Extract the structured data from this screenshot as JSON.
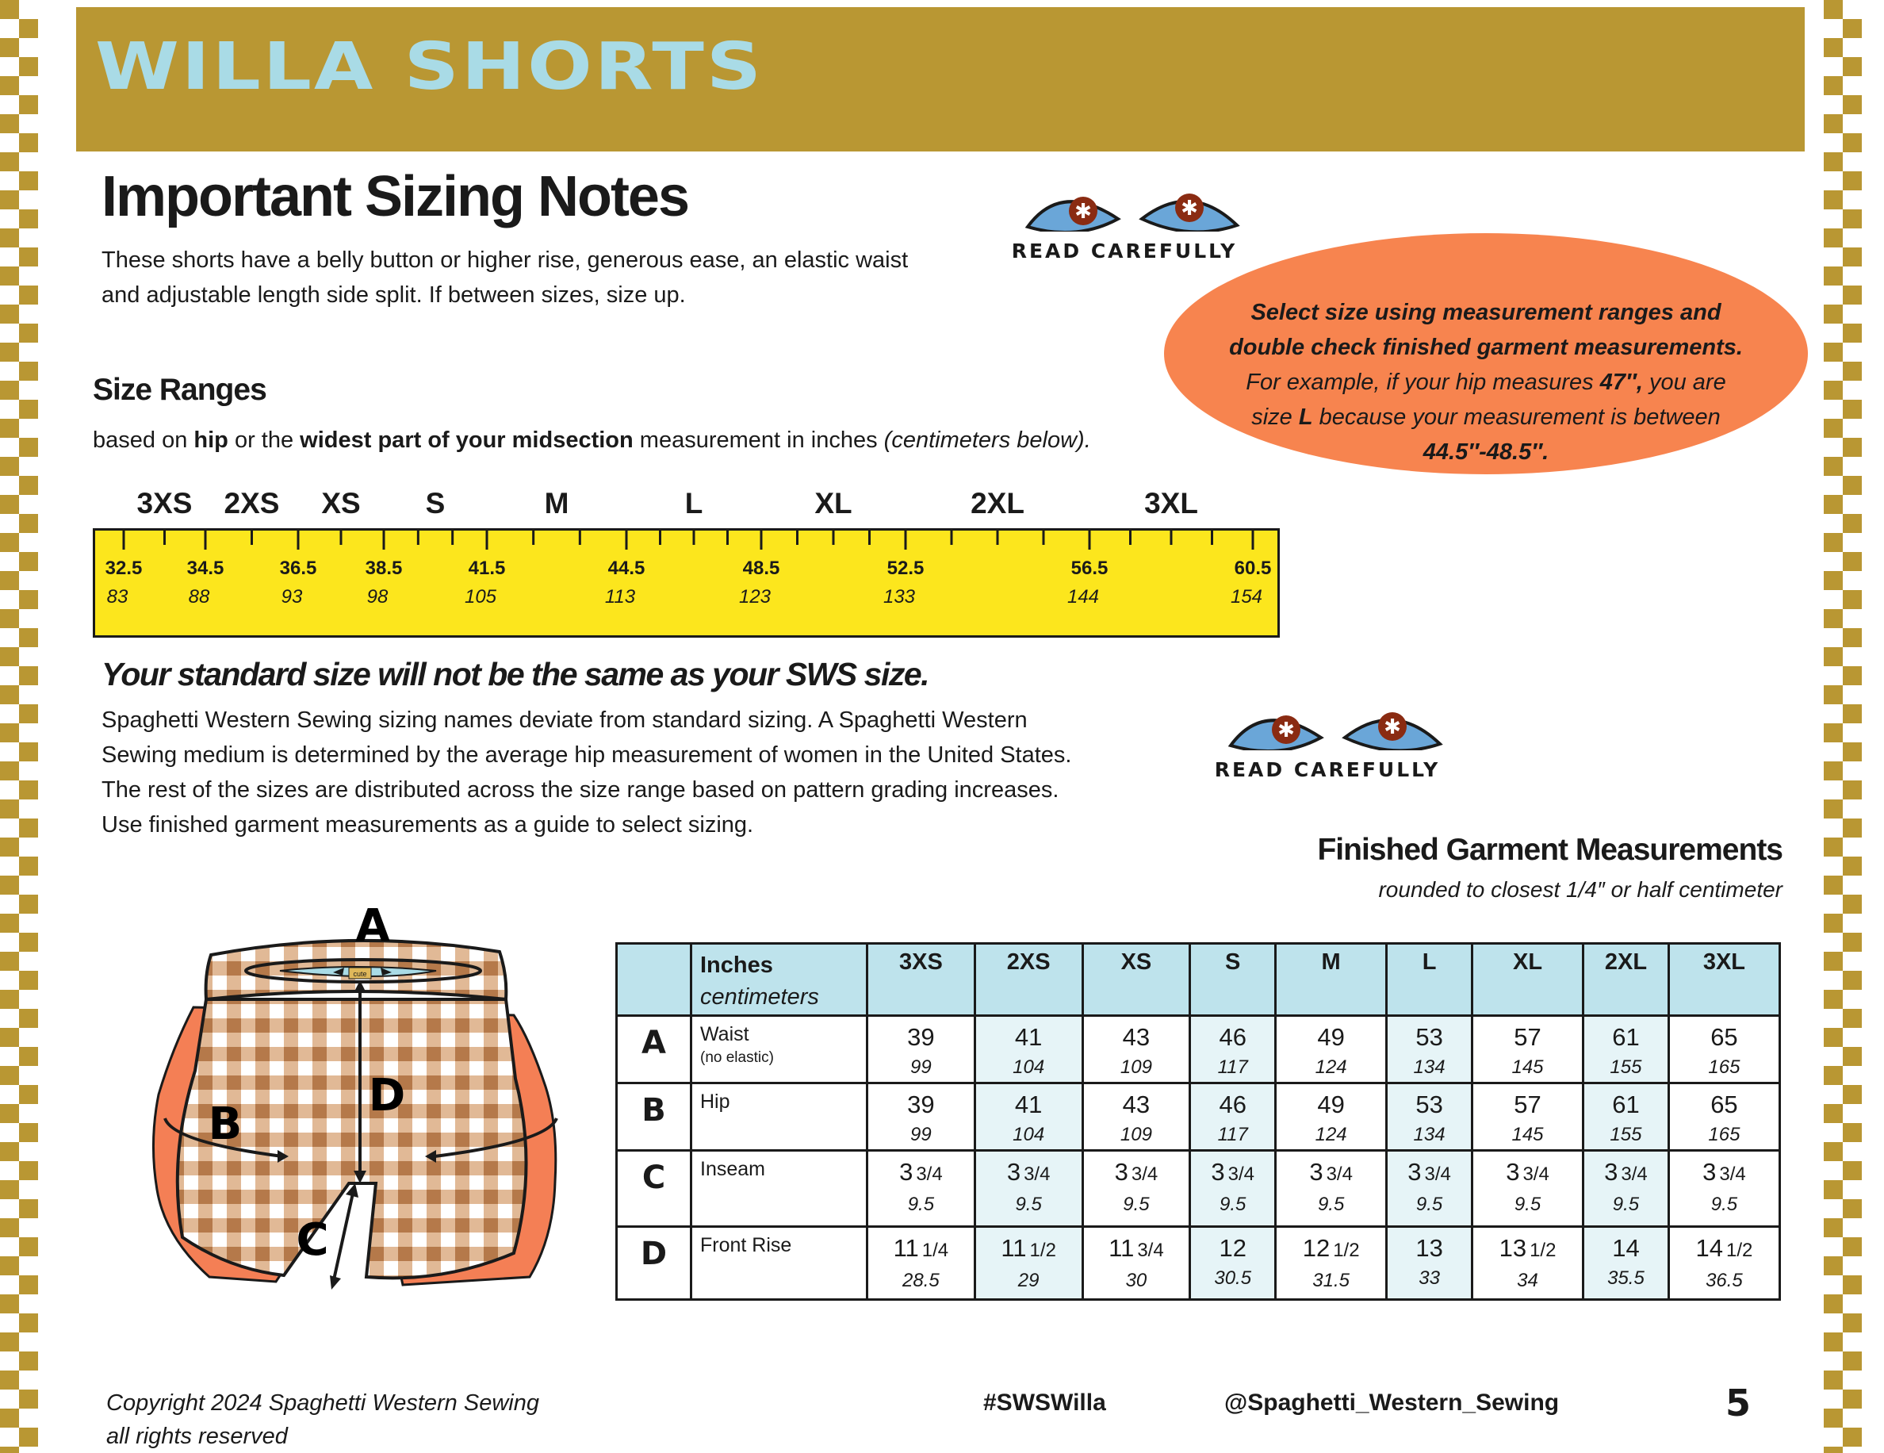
{
  "banner": {
    "title": "WILLA SHORTS",
    "color": "#b99733",
    "title_color": "#a9dbe6"
  },
  "heading": "Important Sizing Notes",
  "intro": {
    "line1": "These shorts have a belly button or higher rise, generous ease, an elastic waist",
    "line2": "and adjustable length side split.   If between sizes, size up."
  },
  "read_carefully": "READ CAREFULLY",
  "callout": {
    "line1": "Select size using measurement ranges and",
    "line2": "double check finished garment measurements.",
    "line3_pre": "For example, if your  hip measures ",
    "line3_bold": "47″,",
    "line3_post": "  you are",
    "line4_pre": "size ",
    "line4_bold": "L",
    "line4_post": " because your measurement is between",
    "line5": "44.5″-48.5″.",
    "color": "#f7844f"
  },
  "size_ranges": {
    "title": "Size Ranges",
    "based_pre": "based on ",
    "based_b1": "hip",
    "based_mid": " or the ",
    "based_b2": "widest part of your midsection",
    "based_post": " measurement in inches ",
    "based_italic": "(centimeters below).",
    "sizes": [
      "3XS",
      "2XS",
      "XS",
      "S",
      "M",
      "L",
      "XL",
      "2XL",
      "3XL"
    ],
    "inches": [
      "32.5",
      "34.5",
      "36.5",
      "38.5",
      "41.5",
      "44.5",
      "48.5",
      "52.5",
      "56.5",
      "60.5"
    ],
    "centimeters": [
      "83",
      "88",
      "93",
      "98",
      "105",
      "113",
      "123",
      "133",
      "144",
      "154"
    ],
    "ruler_color": "#fce61d"
  },
  "warning": "Your standard size will not be the same as your SWS size.",
  "explanation": {
    "line1": "Spaghetti Western Sewing sizing names deviate from standard sizing.  A Spaghetti Western",
    "line2": "Sewing  medium is determined by the average hip measurement of women in the United States.",
    "line3": "The rest of the sizes are distributed across the size range based on pattern grading increases.",
    "line4": "Use finished garment measurements as a guide to select sizing."
  },
  "finished": {
    "title": "Finished Garment Measurements",
    "subtitle": "rounded to closest 1/4″ or half centimeter",
    "unit_in": "Inches",
    "unit_cm": "centimeters",
    "sizes": [
      "3XS",
      "2XS",
      "XS",
      "S",
      "M",
      "L",
      "XL",
      "2XL",
      "3XL"
    ],
    "header_color": "#bee3ec",
    "rows": [
      {
        "letter": "A",
        "label": "Waist",
        "note": "(no elastic)",
        "in": [
          [
            "39",
            ""
          ],
          [
            "41",
            ""
          ],
          [
            "43",
            ""
          ],
          [
            "46",
            ""
          ],
          [
            "49",
            ""
          ],
          [
            "53",
            ""
          ],
          [
            "57",
            ""
          ],
          [
            "61",
            ""
          ],
          [
            "65",
            ""
          ]
        ],
        "cm": [
          "99",
          "104",
          "109",
          "117",
          "124",
          "134",
          "145",
          "155",
          "165"
        ]
      },
      {
        "letter": "B",
        "label": "Hip",
        "note": "",
        "in": [
          [
            "39",
            ""
          ],
          [
            "41",
            ""
          ],
          [
            "43",
            ""
          ],
          [
            "46",
            ""
          ],
          [
            "49",
            ""
          ],
          [
            "53",
            ""
          ],
          [
            "57",
            ""
          ],
          [
            "61",
            ""
          ],
          [
            "65",
            ""
          ]
        ],
        "cm": [
          "99",
          "104",
          "109",
          "117",
          "124",
          "134",
          "145",
          "155",
          "165"
        ]
      },
      {
        "letter": "C",
        "label": "Inseam",
        "note": "",
        "in": [
          [
            "3",
            "3/4"
          ],
          [
            "3",
            "3/4"
          ],
          [
            "3",
            "3/4"
          ],
          [
            "3",
            "3/4"
          ],
          [
            "3",
            "3/4"
          ],
          [
            "3",
            "3/4"
          ],
          [
            "3",
            "3/4"
          ],
          [
            "3",
            "3/4"
          ],
          [
            "3",
            "3/4"
          ]
        ],
        "cm": [
          "9.5",
          "9.5",
          "9.5",
          "9.5",
          "9.5",
          "9.5",
          "9.5",
          "9.5",
          "9.5"
        ]
      },
      {
        "letter": "D",
        "label": "Front Rise",
        "note": "",
        "in": [
          [
            "11",
            "1/4"
          ],
          [
            "11",
            "1/2"
          ],
          [
            "11",
            "3/4"
          ],
          [
            "12",
            ""
          ],
          [
            "12",
            "1/2"
          ],
          [
            "13",
            ""
          ],
          [
            "13",
            "1/2"
          ],
          [
            "14",
            ""
          ],
          [
            "14",
            "1/2"
          ]
        ],
        "cm": [
          "28.5",
          "29",
          "30",
          "30.5",
          "31.5",
          "33",
          "34",
          "35.5",
          "36.5"
        ]
      }
    ]
  },
  "diagram": {
    "labels": [
      "A",
      "B",
      "C",
      "D"
    ],
    "tag": "cute"
  },
  "footer": {
    "copy1": "Copyright 2024 Spaghetti Western Sewing",
    "copy2": "all rights reserved",
    "hashtag": "#SWSWilla",
    "handle": "@Spaghetti_Western_Sewing",
    "page": "5"
  }
}
